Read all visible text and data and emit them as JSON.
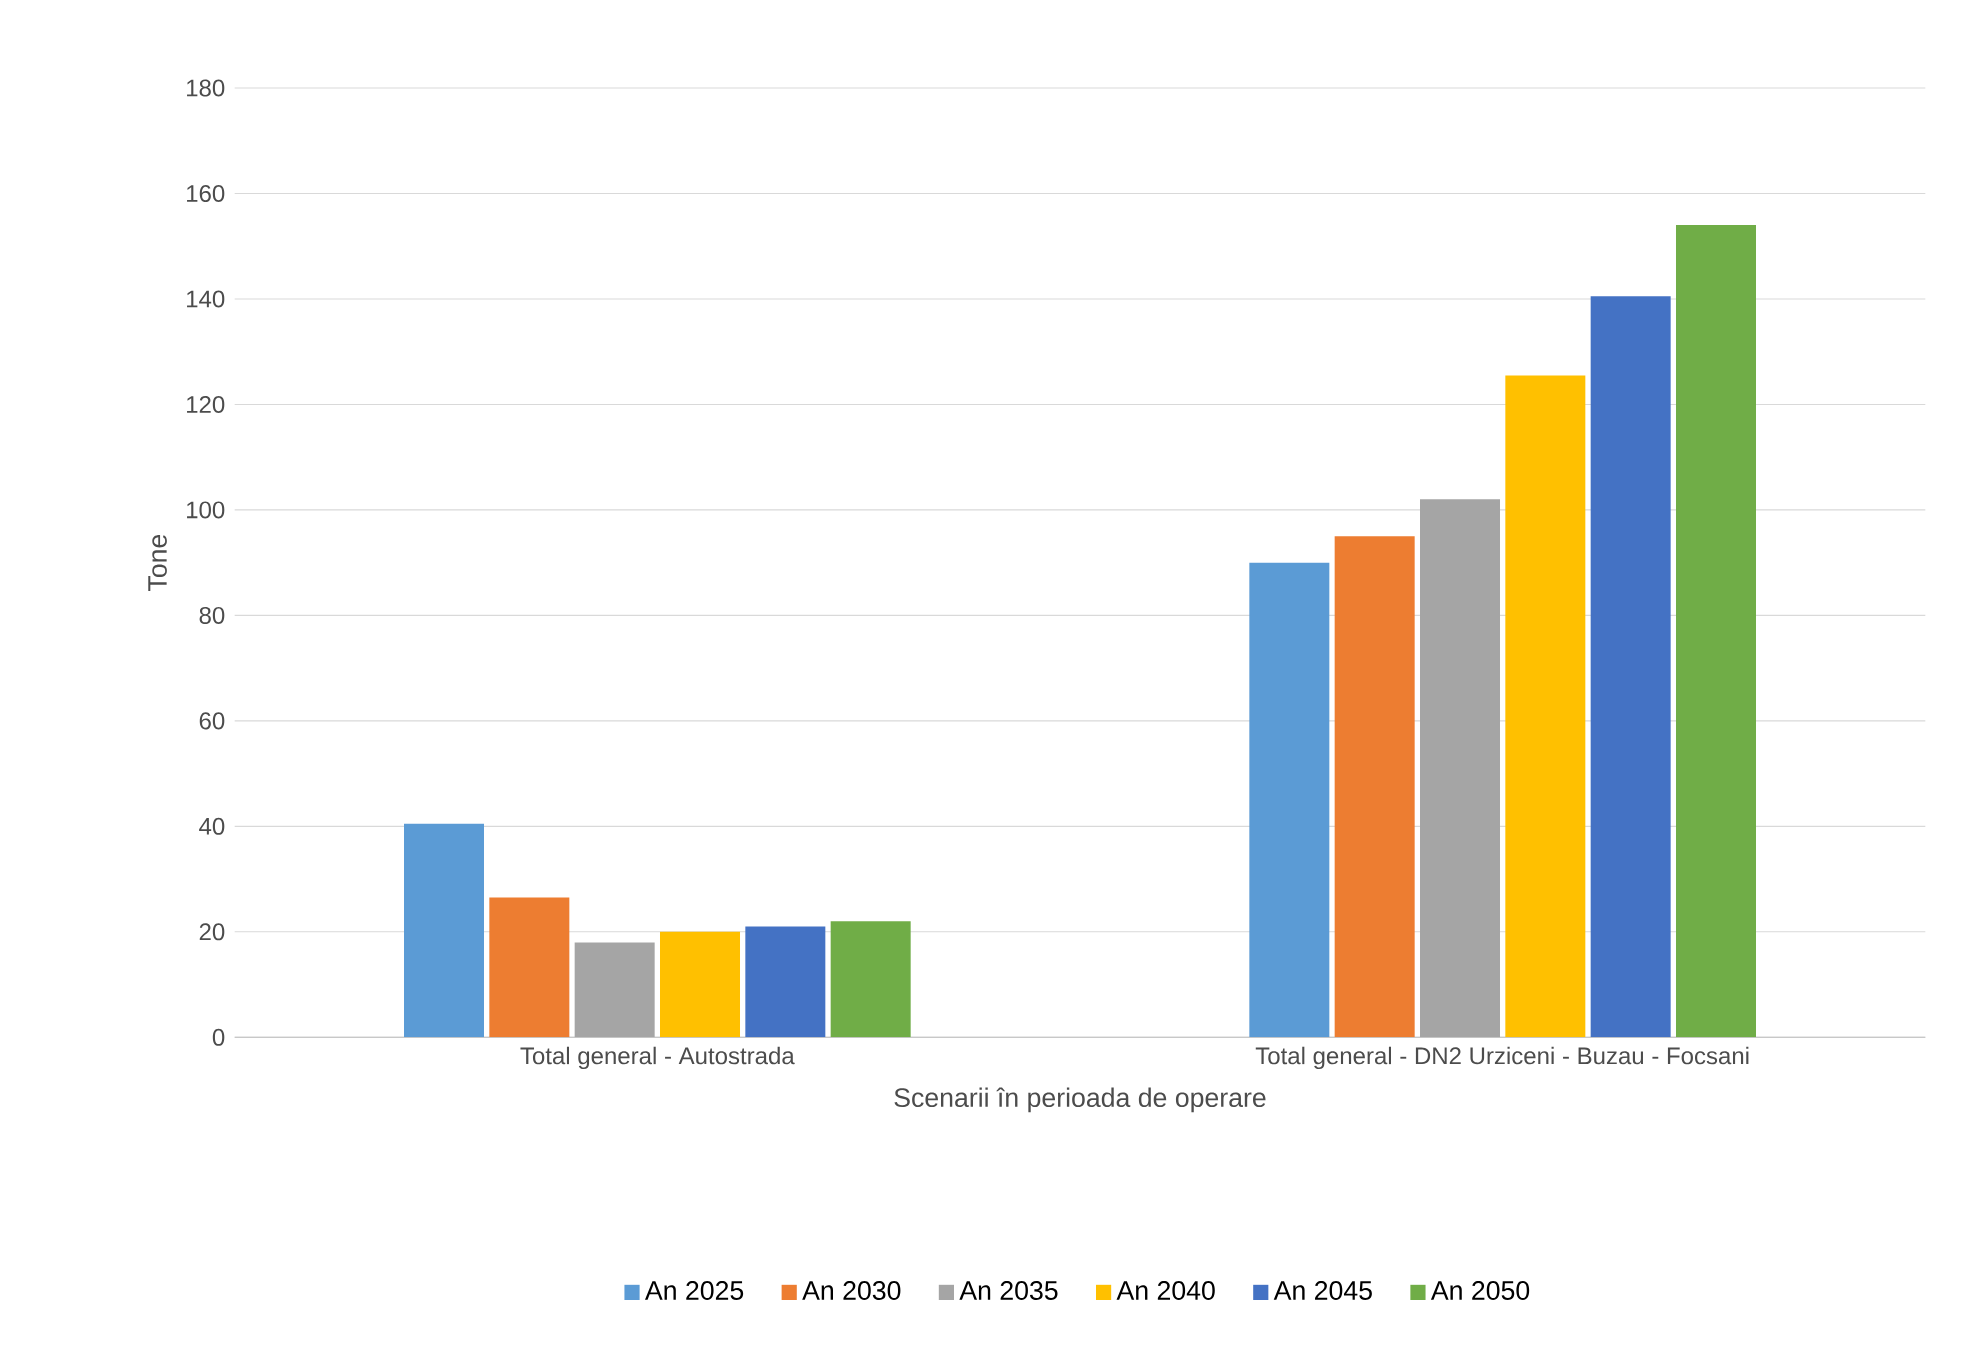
{
  "chart_data": {
    "type": "bar",
    "xlabel": "Scenarii în perioada de operare",
    "ylabel": "Tone",
    "categories": [
      "Total general  - Autostrada",
      "Total general - DN2 Urziceni - Buzau - Focsani"
    ],
    "series": [
      {
        "name": "An 2025",
        "color": "#5b9bd5",
        "values": [
          40.5,
          90
        ]
      },
      {
        "name": "An 2030",
        "color": "#ed7d31",
        "values": [
          26.5,
          95
        ]
      },
      {
        "name": "An 2035",
        "color": "#a5a5a5",
        "values": [
          18,
          102
        ]
      },
      {
        "name": "An 2040",
        "color": "#ffc000",
        "values": [
          20,
          125.5
        ]
      },
      {
        "name": "An 2045",
        "color": "#4472c4",
        "values": [
          21,
          140.5
        ]
      },
      {
        "name": "An 2050",
        "color": "#70ad47",
        "values": [
          22,
          154
        ]
      }
    ],
    "ylim": [
      0,
      180
    ],
    "yticks": [
      0,
      20,
      40,
      60,
      80,
      100,
      120,
      140,
      160,
      180
    ],
    "grid": "y",
    "legend": "bottom"
  }
}
